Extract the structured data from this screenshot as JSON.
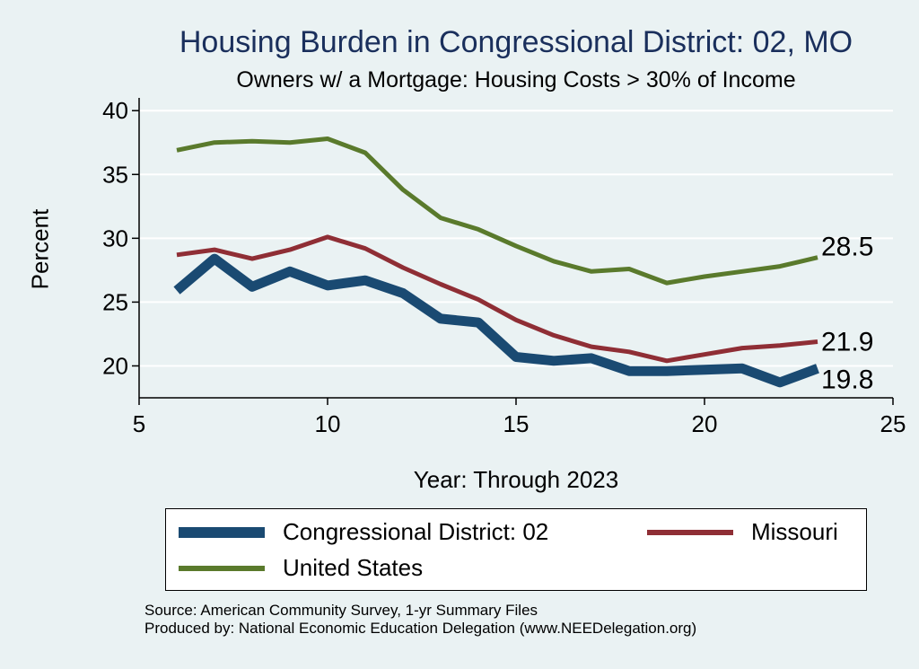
{
  "chart_data": {
    "type": "line",
    "title": "Housing Burden in Congressional District:  02, MO",
    "subtitle": "Owners w/ a Mortgage: Housing Costs > 30% of Income",
    "xlabel": "Year: Through 2023",
    "ylabel": "Percent",
    "xlim": [
      5,
      25
    ],
    "ylim": [
      17.5,
      41
    ],
    "xticks": [
      5,
      10,
      15,
      20,
      25
    ],
    "yticks": [
      20,
      25,
      30,
      35,
      40
    ],
    "grid": "horizontal",
    "x": [
      6,
      7,
      8,
      9,
      10,
      11,
      12,
      13,
      14,
      15,
      16,
      17,
      18,
      19,
      20,
      21,
      22,
      23
    ],
    "series": [
      {
        "name": "Congressional District:  02",
        "color": "#1a4a72",
        "line_weight": "thick",
        "values": [
          25.9,
          28.4,
          26.2,
          27.4,
          26.3,
          26.7,
          25.7,
          23.7,
          23.4,
          20.7,
          20.4,
          20.6,
          19.6,
          19.6,
          19.7,
          19.8,
          18.7,
          19.8
        ],
        "end_label": "19.8"
      },
      {
        "name": "Missouri",
        "color": "#8f2e35",
        "line_weight": "medium",
        "values": [
          28.7,
          29.1,
          28.4,
          29.1,
          30.1,
          29.2,
          27.7,
          26.4,
          25.2,
          23.6,
          22.4,
          21.5,
          21.1,
          20.4,
          20.9,
          21.4,
          21.6,
          21.9
        ],
        "end_label": "21.9"
      },
      {
        "name": "United States",
        "color": "#5a7a2c",
        "line_weight": "medium",
        "values": [
          36.9,
          37.5,
          37.6,
          37.5,
          37.8,
          36.7,
          33.8,
          31.6,
          30.7,
          29.4,
          28.2,
          27.4,
          27.6,
          26.5,
          27.0,
          27.4,
          27.8,
          28.5
        ],
        "end_label": "28.5"
      }
    ],
    "legend": {
      "position": "bottom",
      "entries": [
        "Congressional District:  02",
        "Missouri",
        "United States"
      ]
    },
    "source_lines": [
      "Source: American Community Survey, 1-yr Summary Files",
      "Produced by: National Economic Education Delegation (www.NEEDelegation.org)"
    ]
  }
}
